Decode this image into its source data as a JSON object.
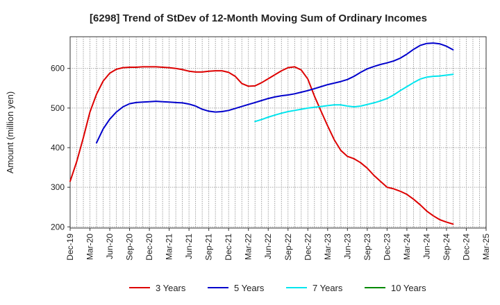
{
  "chart_data": {
    "type": "line",
    "title": "[6298]  Trend of StDev of 12-Month Moving Sum of Ordinary Incomes",
    "xlabel": "",
    "ylabel": "Amount (million yen)",
    "ylim": [
      197,
      680
    ],
    "y_ticks": [
      200,
      300,
      400,
      500,
      600
    ],
    "x_ticks": [
      "Dec-19",
      "Mar-20",
      "Jun-20",
      "Sep-20",
      "Dec-20",
      "Mar-21",
      "Jun-21",
      "Sep-21",
      "Dec-21",
      "Mar-22",
      "Jun-22",
      "Sep-22",
      "Dec-22",
      "Mar-23",
      "Jun-23",
      "Sep-23",
      "Dec-23",
      "Mar-24",
      "Jun-24",
      "Sep-24",
      "Dec-24",
      "Mar-25"
    ],
    "grid": true,
    "legend_position": "bottom",
    "series": [
      {
        "name": "3 Years",
        "color": "#dd0000",
        "start_index": 0,
        "values": [
          315,
          365,
          425,
          490,
          535,
          568,
          588,
          598,
          602,
          603,
          603,
          604,
          604,
          604,
          603,
          602,
          600,
          597,
          593,
          591,
          591,
          593,
          594,
          594,
          590,
          580,
          562,
          555,
          556,
          564,
          574,
          584,
          594,
          602,
          604,
          596,
          573,
          530,
          492,
          455,
          420,
          393,
          378,
          372,
          362,
          348,
          330,
          315,
          300,
          296,
          290,
          282,
          270,
          256,
          240,
          228,
          218,
          212,
          207
        ]
      },
      {
        "name": "5 Years",
        "color": "#0000cc",
        "start_index": 4,
        "values": [
          412,
          447,
          472,
          490,
          503,
          511,
          514,
          515,
          516,
          517,
          516,
          515,
          514,
          513,
          510,
          505,
          497,
          492,
          490,
          491,
          494,
          499,
          504,
          509,
          514,
          519,
          524,
          528,
          531,
          533,
          536,
          540,
          544,
          549,
          554,
          559,
          563,
          567,
          572,
          580,
          590,
          599,
          605,
          610,
          614,
          619,
          626,
          636,
          648,
          658,
          663,
          664,
          662,
          656,
          647
        ]
      },
      {
        "name": "7 Years",
        "color": "#00e5ee",
        "start_index": 28,
        "values": [
          466,
          471,
          477,
          482,
          487,
          491,
          494,
          497,
          500,
          502,
          504,
          506,
          508,
          508,
          505,
          503,
          505,
          509,
          513,
          518,
          524,
          533,
          544,
          554,
          564,
          573,
          578,
          580,
          581,
          583,
          585
        ]
      },
      {
        "name": "10 Years",
        "color": "#008800",
        "start_index": 0,
        "values": []
      }
    ]
  }
}
